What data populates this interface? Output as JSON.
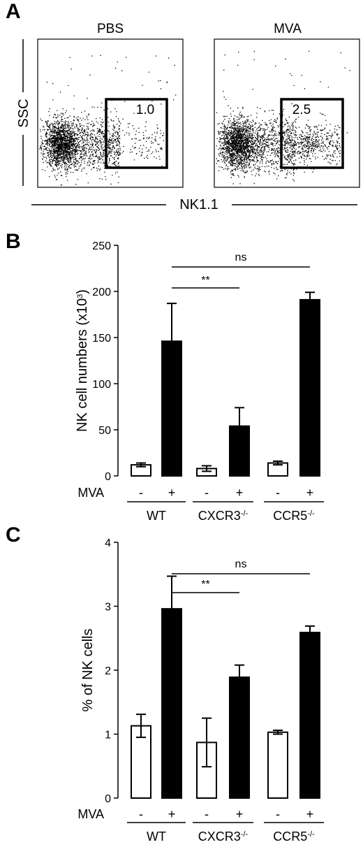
{
  "figure": {
    "panels": {
      "a": "A",
      "b": "B",
      "c": "C"
    }
  },
  "chart_data": [
    {
      "panel": "A",
      "type": "scatter",
      "xlabel": "NK1.1",
      "ylabel": "SSC",
      "plots": [
        {
          "title": "PBS",
          "gate_value": "1.0",
          "gate_fraction": 0.01
        },
        {
          "title": "MVA",
          "gate_value": "2.5",
          "gate_fraction": 0.025
        }
      ]
    },
    {
      "panel": "B",
      "type": "bar",
      "ylabel_main": "NK cell numbers (x10",
      "ylabel_sup": "3",
      "ylabel_tail": ")",
      "ylim": [
        0,
        250
      ],
      "yticks": [
        "0",
        "50",
        "100",
        "150",
        "200",
        "250"
      ],
      "treatment_label": "MVA",
      "treatment_signs": [
        "-",
        "+"
      ],
      "groups": [
        {
          "base": "WT",
          "sup": ""
        },
        {
          "base": "CXCR3",
          "sup": "-/-"
        },
        {
          "base": "CCR5",
          "sup": "-/-"
        }
      ],
      "series": [
        {
          "treatment": "-",
          "fill": "#ffffff",
          "values": [
            12,
            8,
            14
          ],
          "errors": [
            2,
            3,
            2
          ]
        },
        {
          "treatment": "+",
          "fill": "#000000",
          "values": [
            146,
            54,
            191
          ],
          "errors": [
            41,
            20,
            8
          ]
        }
      ],
      "significance": [
        {
          "label": "**",
          "from": "WT +",
          "to": "CXCR3 +"
        },
        {
          "label": "ns",
          "from": "WT +",
          "to": "CCR5 +"
        }
      ]
    },
    {
      "panel": "C",
      "type": "bar",
      "ylabel_main": "% of NK cells",
      "ylim": [
        0,
        4
      ],
      "yticks": [
        "0",
        "1",
        "2",
        "3",
        "4"
      ],
      "treatment_label": "MVA",
      "treatment_signs": [
        "-",
        "+"
      ],
      "groups": [
        {
          "base": "WT",
          "sup": ""
        },
        {
          "base": "CXCR3",
          "sup": "-/-"
        },
        {
          "base": "CCR5",
          "sup": "-/-"
        }
      ],
      "series": [
        {
          "treatment": "-",
          "fill": "#ffffff",
          "values": [
            1.13,
            0.87,
            1.03
          ],
          "errors": [
            0.18,
            0.38,
            0.03
          ]
        },
        {
          "treatment": "+",
          "fill": "#000000",
          "values": [
            2.96,
            1.89,
            2.59
          ],
          "errors": [
            0.51,
            0.19,
            0.1
          ]
        }
      ],
      "significance": [
        {
          "label": "**",
          "from": "WT +",
          "to": "CXCR3 +"
        },
        {
          "label": "ns",
          "from": "WT +",
          "to": "CCR5 +"
        }
      ]
    }
  ]
}
